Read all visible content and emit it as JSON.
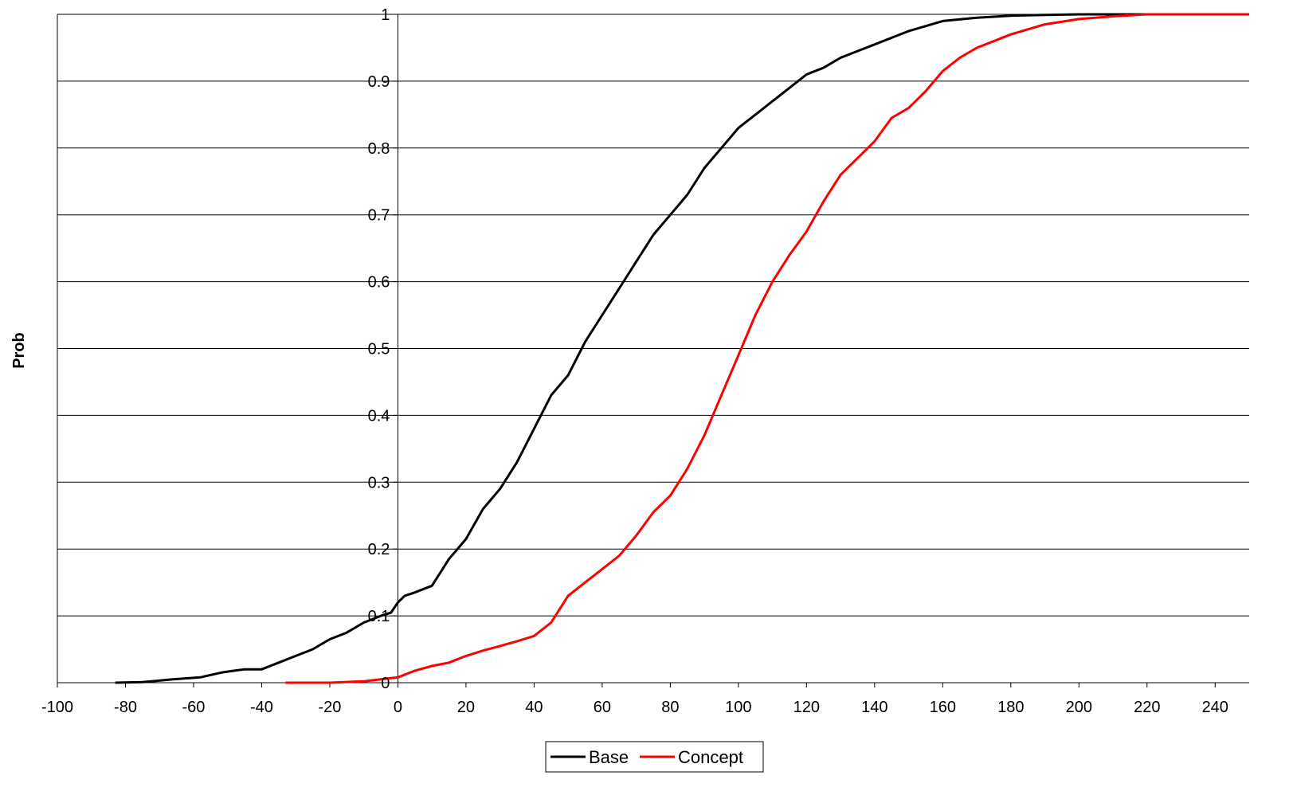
{
  "chart_data": {
    "type": "line",
    "title": "",
    "xlabel": "",
    "ylabel": "Prob",
    "xlim": [
      -100,
      250
    ],
    "ylim": [
      0,
      1
    ],
    "x_ticks": [
      -100,
      -80,
      -60,
      -40,
      -20,
      0,
      20,
      40,
      60,
      80,
      100,
      120,
      140,
      160,
      180,
      200,
      220,
      240
    ],
    "y_ticks": [
      0,
      0.1,
      0.2,
      0.3,
      0.4,
      0.5,
      0.6,
      0.7,
      0.8,
      0.9,
      1
    ],
    "grid": "horizontal",
    "legend_position": "bottom",
    "series": [
      {
        "name": "Base",
        "color": "#000000",
        "x": [
          -83,
          -75,
          -66,
          -58,
          -52,
          -48,
          -45,
          -40,
          -35,
          -30,
          -25,
          -20,
          -15,
          -10,
          -5,
          -2,
          0,
          2,
          5,
          10,
          15,
          20,
          25,
          30,
          35,
          40,
          45,
          50,
          55,
          60,
          65,
          70,
          75,
          80,
          85,
          90,
          95,
          100,
          105,
          110,
          115,
          120,
          125,
          130,
          135,
          140,
          145,
          150,
          160,
          170,
          180,
          190,
          200,
          210,
          250
        ],
        "y": [
          0.0,
          0.001,
          0.005,
          0.008,
          0.015,
          0.018,
          0.02,
          0.02,
          0.03,
          0.04,
          0.05,
          0.065,
          0.075,
          0.09,
          0.1,
          0.105,
          0.12,
          0.13,
          0.135,
          0.145,
          0.185,
          0.215,
          0.26,
          0.29,
          0.33,
          0.38,
          0.43,
          0.46,
          0.51,
          0.55,
          0.59,
          0.63,
          0.67,
          0.7,
          0.73,
          0.77,
          0.8,
          0.83,
          0.85,
          0.87,
          0.89,
          0.91,
          0.92,
          0.935,
          0.945,
          0.955,
          0.965,
          0.975,
          0.99,
          0.995,
          0.998,
          0.999,
          1.0,
          1.0,
          1.0
        ]
      },
      {
        "name": "Concept",
        "color": "#ff0000",
        "x": [
          -33,
          -20,
          -10,
          -5,
          0,
          5,
          10,
          15,
          20,
          25,
          30,
          35,
          40,
          45,
          50,
          55,
          60,
          65,
          70,
          75,
          80,
          85,
          90,
          95,
          100,
          105,
          110,
          115,
          120,
          125,
          130,
          135,
          140,
          145,
          150,
          155,
          160,
          165,
          170,
          180,
          190,
          200,
          210,
          220,
          250
        ],
        "y": [
          0.0,
          0.0,
          0.002,
          0.005,
          0.008,
          0.018,
          0.025,
          0.03,
          0.04,
          0.048,
          0.055,
          0.062,
          0.07,
          0.09,
          0.13,
          0.15,
          0.17,
          0.19,
          0.22,
          0.255,
          0.28,
          0.32,
          0.37,
          0.43,
          0.49,
          0.55,
          0.6,
          0.64,
          0.675,
          0.72,
          0.76,
          0.785,
          0.81,
          0.845,
          0.86,
          0.885,
          0.915,
          0.935,
          0.95,
          0.97,
          0.985,
          0.993,
          0.997,
          1.0,
          1.0
        ]
      }
    ]
  }
}
